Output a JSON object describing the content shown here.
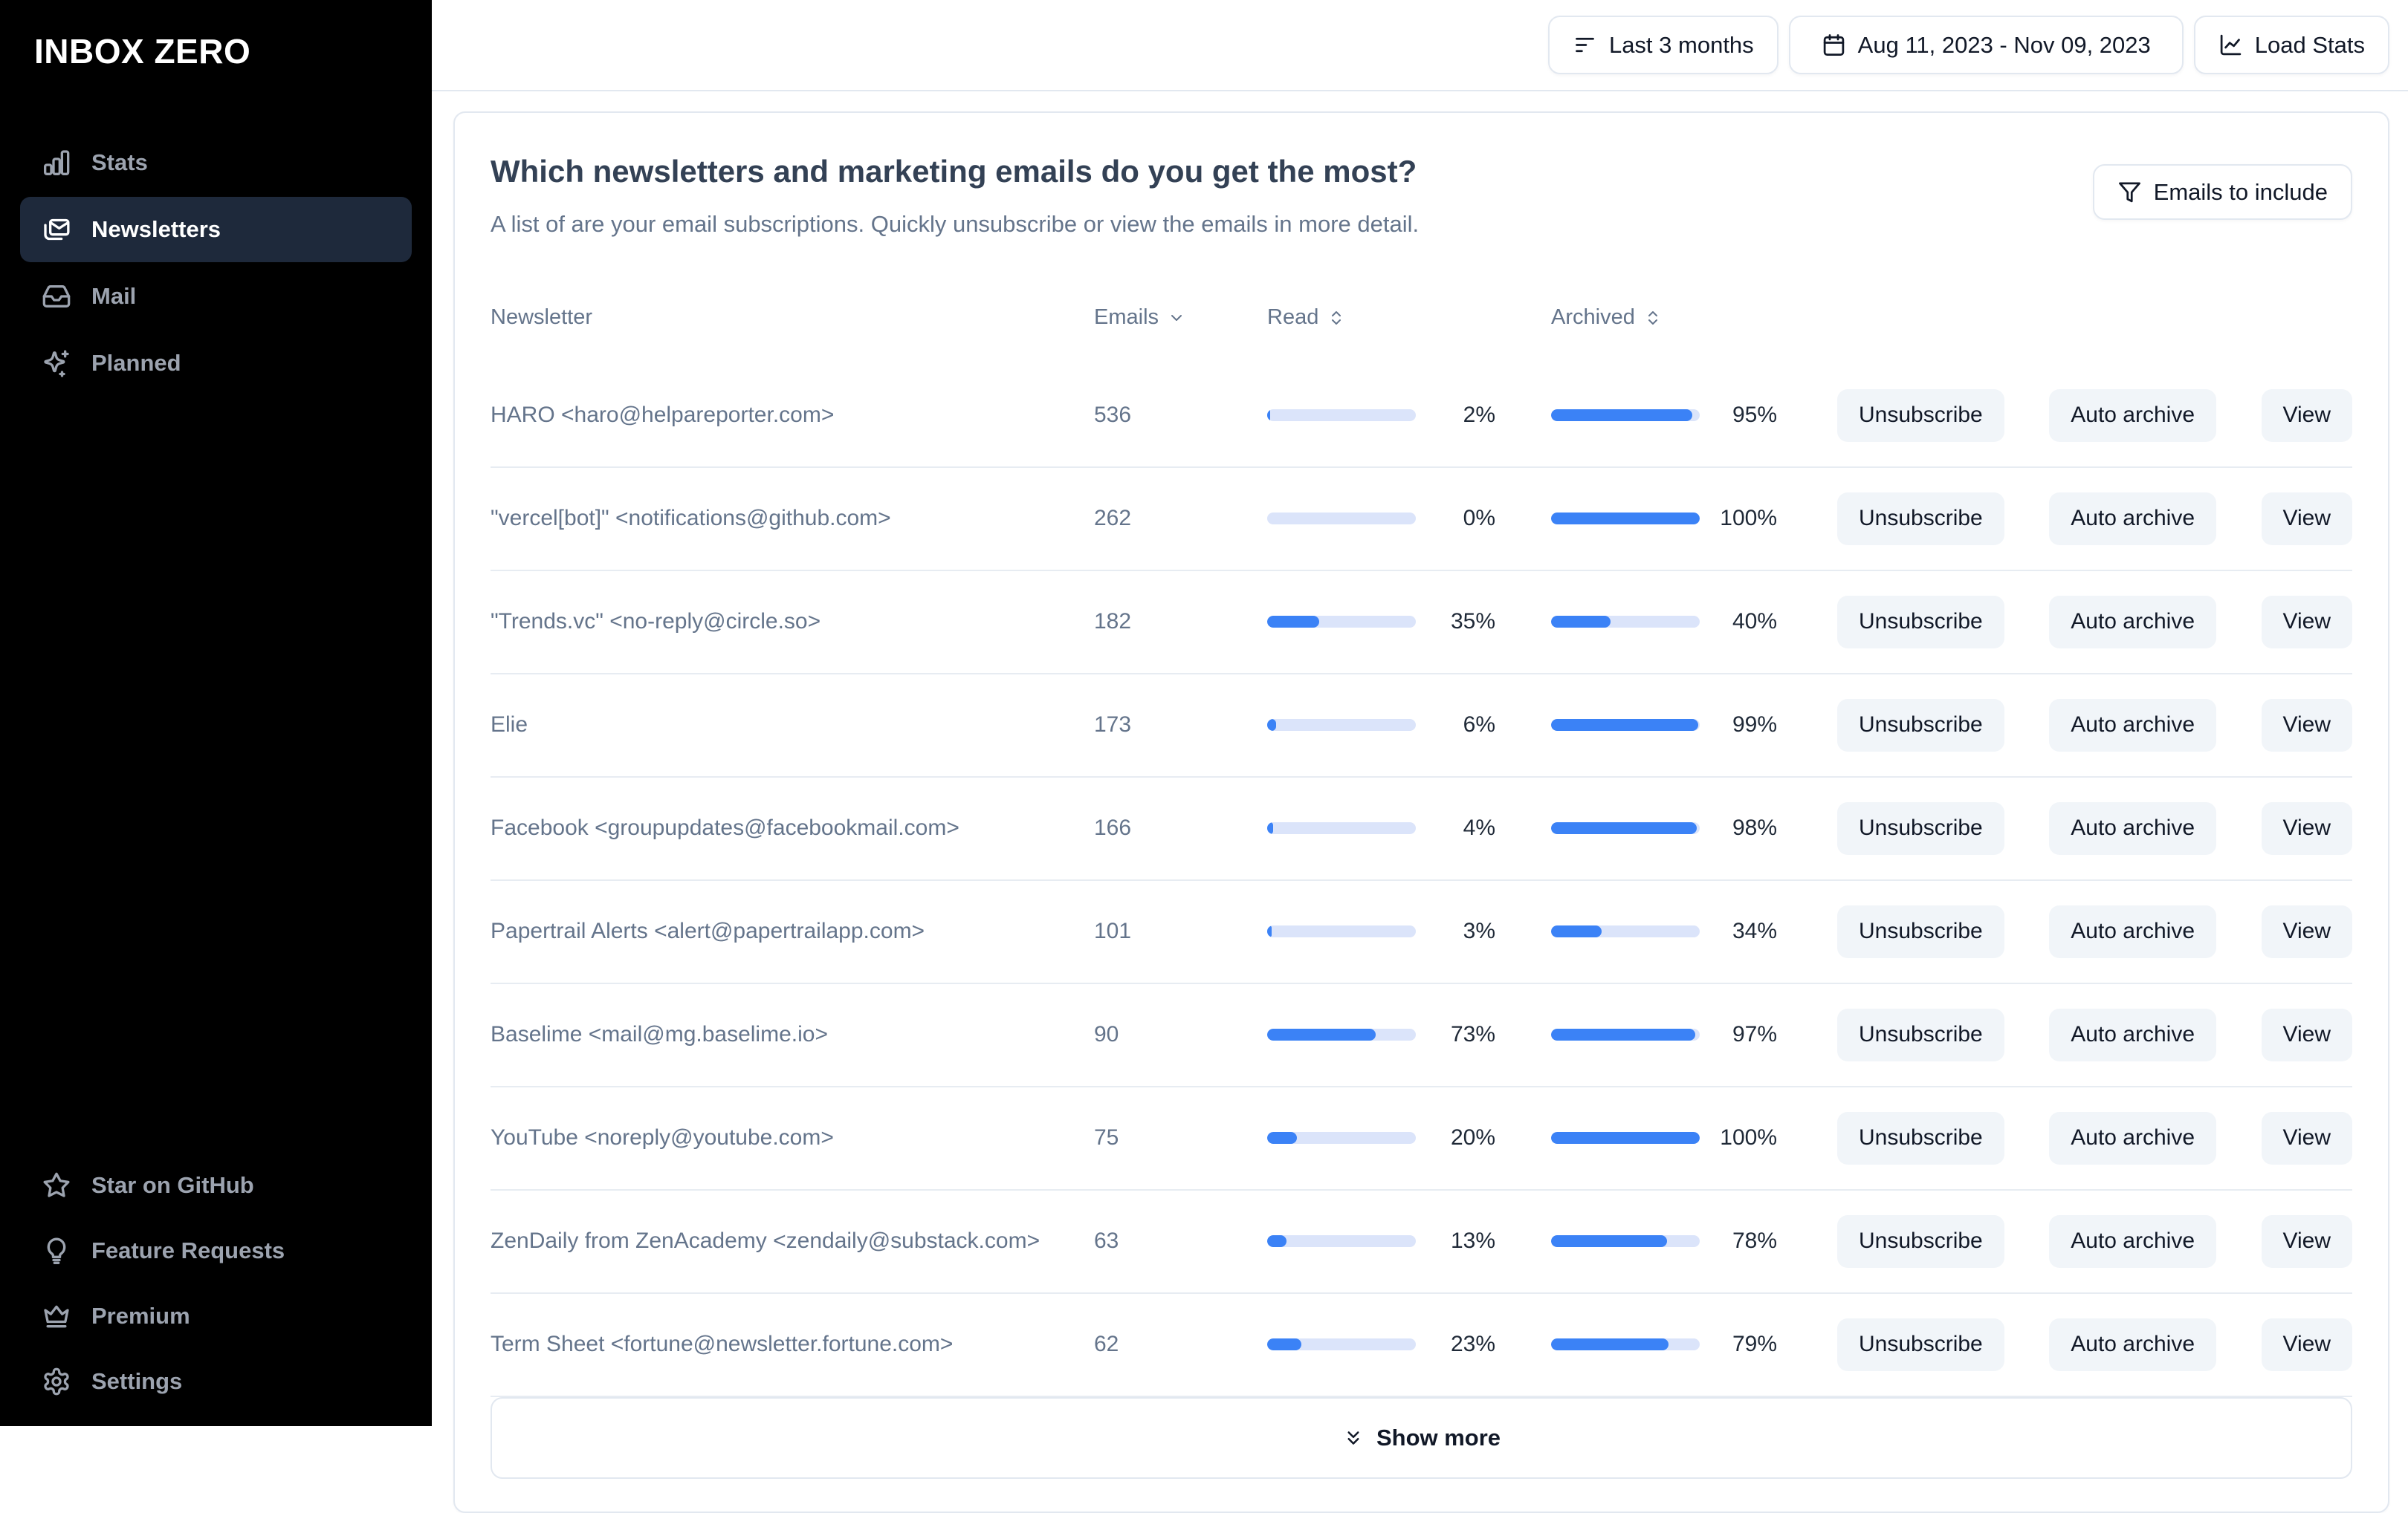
{
  "sidebar": {
    "logo": "INBOX ZERO",
    "nav": [
      {
        "label": "Stats",
        "icon": "bar-chart-icon",
        "active": false
      },
      {
        "label": "Newsletters",
        "icon": "newsletter-icon",
        "active": true
      },
      {
        "label": "Mail",
        "icon": "inbox-icon",
        "active": false
      },
      {
        "label": "Planned",
        "icon": "sparkles-icon",
        "active": false
      }
    ],
    "footer_nav": [
      {
        "label": "Star on GitHub",
        "icon": "star-icon"
      },
      {
        "label": "Feature Requests",
        "icon": "lightbulb-icon"
      },
      {
        "label": "Premium",
        "icon": "crown-icon"
      },
      {
        "label": "Settings",
        "icon": "gear-icon"
      }
    ]
  },
  "topbar": {
    "range_button": "Last 3 months",
    "date_button": "Aug 11, 2023 - Nov 09, 2023",
    "load_stats_button": "Load Stats"
  },
  "panel": {
    "title": "Which newsletters and marketing emails do you get the most?",
    "subtitle": "A list of are your email subscriptions. Quickly unsubscribe or view the emails in more detail.",
    "filter_button": "Emails to include",
    "show_more": "Show more"
  },
  "table": {
    "columns": {
      "newsletter": "Newsletter",
      "emails": "Emails",
      "read": "Read",
      "archived": "Archived"
    },
    "actions": {
      "unsubscribe": "Unsubscribe",
      "auto_archive": "Auto archive",
      "view": "View"
    },
    "rows": [
      {
        "name": "HARO <haro@helpareporter.com>",
        "emails": 536,
        "read_pct": 2,
        "archived_pct": 95
      },
      {
        "name": "\"vercel[bot]\" <notifications@github.com>",
        "emails": 262,
        "read_pct": 0,
        "archived_pct": 100
      },
      {
        "name": "\"Trends.vc\" <no-reply@circle.so>",
        "emails": 182,
        "read_pct": 35,
        "archived_pct": 40
      },
      {
        "name": "Elie",
        "emails": 173,
        "read_pct": 6,
        "archived_pct": 99
      },
      {
        "name": "Facebook <groupupdates@facebookmail.com>",
        "emails": 166,
        "read_pct": 4,
        "archived_pct": 98
      },
      {
        "name": "Papertrail Alerts <alert@papertrailapp.com>",
        "emails": 101,
        "read_pct": 3,
        "archived_pct": 34
      },
      {
        "name": "Baselime <mail@mg.baselime.io>",
        "emails": 90,
        "read_pct": 73,
        "archived_pct": 97
      },
      {
        "name": "YouTube <noreply@youtube.com>",
        "emails": 75,
        "read_pct": 20,
        "archived_pct": 100
      },
      {
        "name": "ZenDaily from ZenAcademy <zendaily@substack.com>",
        "emails": 63,
        "read_pct": 13,
        "archived_pct": 78
      },
      {
        "name": "Term Sheet <fortune@newsletter.fortune.com>",
        "emails": 62,
        "read_pct": 23,
        "archived_pct": 79
      }
    ]
  },
  "colors": {
    "accent_blue": "#3b82f6",
    "bar_track": "#dbe4fa",
    "active_nav_bg": "#1e293b",
    "border_gray": "#e2e8f0",
    "button_gray": "#f1f5f9",
    "sidebar_bg": "#000000"
  }
}
